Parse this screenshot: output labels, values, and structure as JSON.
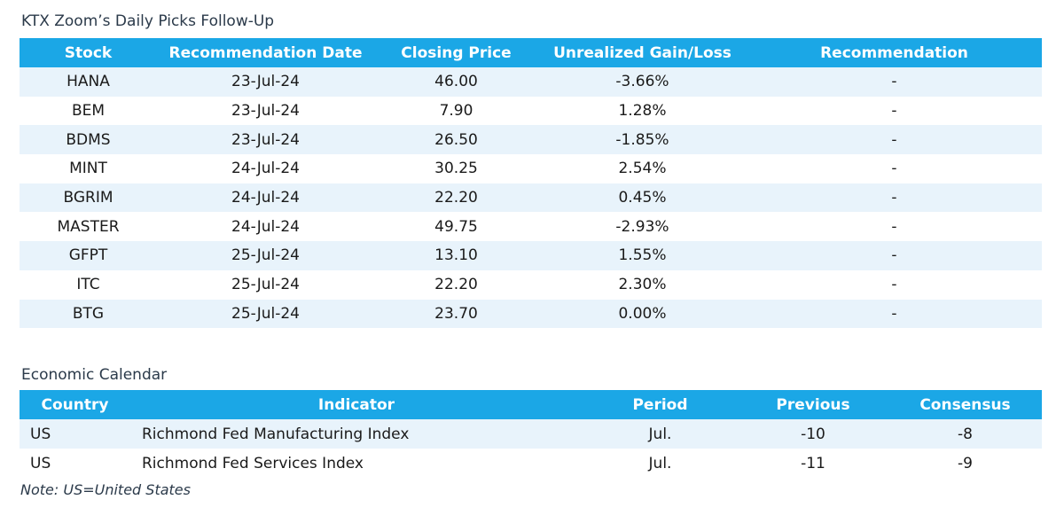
{
  "picks": {
    "title": "KTX Zoom’s Daily Picks Follow-Up",
    "headers": [
      "Stock",
      "Recommendation Date",
      "Closing Price",
      "Unrealized Gain/Loss",
      "Recommendation"
    ],
    "rows": [
      [
        "HANA",
        "23-Jul-24",
        "46.00",
        "-3.66%",
        "-"
      ],
      [
        "BEM",
        "23-Jul-24",
        "7.90",
        "1.28%",
        "-"
      ],
      [
        "BDMS",
        "23-Jul-24",
        "26.50",
        "-1.85%",
        "-"
      ],
      [
        "MINT",
        "24-Jul-24",
        "30.25",
        "2.54%",
        "-"
      ],
      [
        "BGRIM",
        "24-Jul-24",
        "22.20",
        "0.45%",
        "-"
      ],
      [
        "MASTER",
        "24-Jul-24",
        "49.75",
        "-2.93%",
        "-"
      ],
      [
        "GFPT",
        "25-Jul-24",
        "13.10",
        "1.55%",
        "-"
      ],
      [
        "ITC",
        "25-Jul-24",
        "22.20",
        "2.30%",
        "-"
      ],
      [
        "BTG",
        "25-Jul-24",
        "23.70",
        "0.00%",
        "-"
      ]
    ]
  },
  "economic_calendar": {
    "title": "Economic Calendar",
    "headers": [
      "Country",
      "Indicator",
      "Period",
      "Previous",
      "Consensus"
    ],
    "rows": [
      [
        "US",
        "Richmond Fed Manufacturing Index",
        "Jul.",
        "-10",
        "-8"
      ],
      [
        "US",
        "Richmond Fed Services Index",
        "Jul.",
        "-11",
        "-9"
      ]
    ],
    "note": "Note: US=United States"
  },
  "colors": {
    "header_bg": "#1ba7e6",
    "header_text": "#ffffff",
    "stripe": "#e8f3fb"
  }
}
